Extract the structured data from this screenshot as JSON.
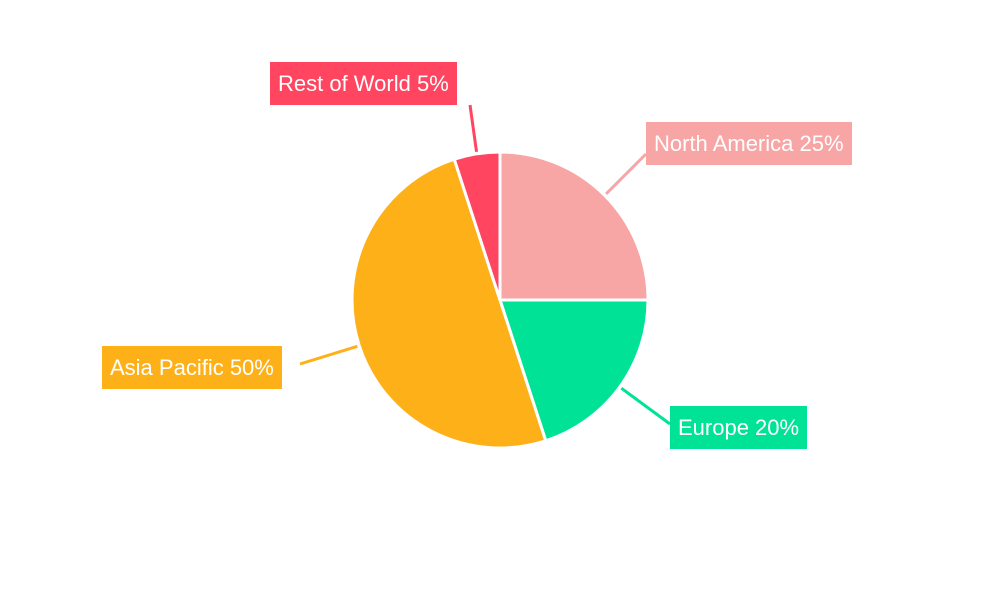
{
  "chart_data": {
    "type": "pie",
    "start_angle": "12 o'clock, clockwise",
    "slices": [
      {
        "label": "North America",
        "value": 25,
        "display": "North America 25%",
        "color": "#F8A5A5"
      },
      {
        "label": "Europe",
        "value": 20,
        "display": "Europe 20%",
        "color": "#00E396"
      },
      {
        "label": "Asia Pacific",
        "value": 50,
        "display": "Asia Pacific 50%",
        "color": "#FEB019"
      },
      {
        "label": "Rest of World",
        "value": 5,
        "display": "Rest of World 5%",
        "color": "#FF4560"
      }
    ],
    "legend": "none",
    "labels": "outside with leader lines"
  }
}
